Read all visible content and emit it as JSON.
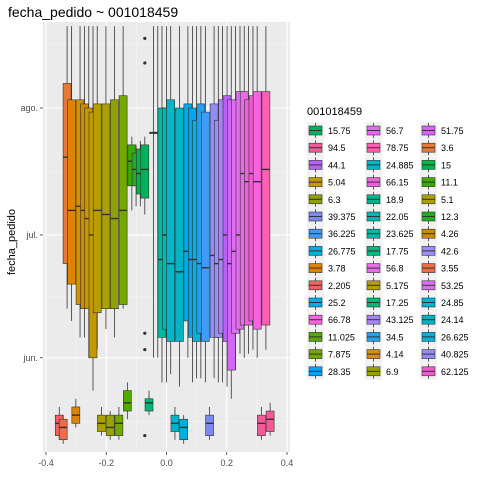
{
  "chart_data": {
    "type": "boxplot",
    "title": "fecha_pedido ~ 001018459",
    "xlabel": "",
    "ylabel": "fecha_pedido",
    "xlim": [
      -0.41,
      0.41
    ],
    "x_ticks": [
      -0.4,
      -0.2,
      0.0,
      0.2,
      0.4
    ],
    "x_tick_labels": [
      "-0.4",
      "-0.2",
      "0.0",
      "0.2",
      "0.4"
    ],
    "y_axis": "date",
    "ylim": [
      "2023-05-09",
      "2023-08-22"
    ],
    "y_ticks": [
      "2023-06-01",
      "2023-07-01",
      "2023-08-01"
    ],
    "y_tick_labels": [
      "jun.",
      "jul.",
      "ago."
    ],
    "grid": true,
    "legend": {
      "title": "001018459",
      "placement": "right",
      "columns": 3,
      "entries": [
        {
          "label": "15.75",
          "color": "#00B25D"
        },
        {
          "label": "94.5",
          "color": "#F45A98"
        },
        {
          "label": "44.1",
          "color": "#BA61F5"
        },
        {
          "label": "5.04",
          "color": "#C49A00"
        },
        {
          "label": "6.3",
          "color": "#8FA000"
        },
        {
          "label": "39.375",
          "color": "#7C8AF0"
        },
        {
          "label": "36.225",
          "color": "#409BF8"
        },
        {
          "label": "26.775",
          "color": "#00B0DB"
        },
        {
          "label": "3.78",
          "color": "#DF8400"
        },
        {
          "label": "2.205",
          "color": "#F2615F"
        },
        {
          "label": "25.2",
          "color": "#00ACE8"
        },
        {
          "label": "66.78",
          "color": "#F763E0"
        },
        {
          "label": "11.025",
          "color": "#52AA00"
        },
        {
          "label": "7.875",
          "color": "#73A800"
        },
        {
          "label": "28.35",
          "color": "#00A6F5"
        },
        {
          "label": "56.7",
          "color": "#E26BF0"
        },
        {
          "label": "78.75",
          "color": "#FF5EB5"
        },
        {
          "label": "24.885",
          "color": "#00B6C8"
        },
        {
          "label": "66.15",
          "color": "#ED61DA"
        },
        {
          "label": "18.9",
          "color": "#00B48E"
        },
        {
          "label": "22.05",
          "color": "#00B9B0"
        },
        {
          "label": "23.625",
          "color": "#00BAA6"
        },
        {
          "label": "17.75",
          "color": "#00B880"
        },
        {
          "label": "56.8",
          "color": "#E96BEA"
        },
        {
          "label": "5.175",
          "color": "#B79F00"
        },
        {
          "label": "17.25",
          "color": "#00B774"
        },
        {
          "label": "43.125",
          "color": "#A783F8"
        },
        {
          "label": "34.5",
          "color": "#22A1F1"
        },
        {
          "label": "4.14",
          "color": "#D39200"
        },
        {
          "label": "6.9",
          "color": "#9AA400"
        },
        {
          "label": "51.75",
          "color": "#D466F7"
        },
        {
          "label": "3.6",
          "color": "#E57A36"
        },
        {
          "label": "15",
          "color": "#00B646"
        },
        {
          "label": "11.1",
          "color": "#3CAB00"
        },
        {
          "label": "5.1",
          "color": "#ACA000"
        },
        {
          "label": "12.3",
          "color": "#21AD27"
        },
        {
          "label": "4.26",
          "color": "#CE8A00"
        },
        {
          "label": "42.6",
          "color": "#9B8EF8"
        },
        {
          "label": "3.55",
          "color": "#EE6C49"
        },
        {
          "label": "53.25",
          "color": "#DA6FF1"
        },
        {
          "label": "24.85",
          "color": "#00B4D0"
        },
        {
          "label": "24.14",
          "color": "#00B3C2"
        },
        {
          "label": "26.625",
          "color": "#0AAFDA"
        },
        {
          "label": "40.825",
          "color": "#918DF4"
        },
        {
          "label": "62.125",
          "color": "#F258CF"
        }
      ]
    },
    "boxes": [
      {
        "x": -0.356,
        "color": "#F2615F",
        "whisker_low": "2023-05-12",
        "q1": "2023-05-13",
        "median": "2023-05-16",
        "q3": "2023-05-18",
        "whisker_high": "2023-05-20"
      },
      {
        "x": -0.343,
        "color": "#EE6C49",
        "whisker_low": "2023-05-11",
        "q1": "2023-05-12",
        "median": "2023-05-15",
        "q3": "2023-05-17",
        "whisker_high": "2023-05-18"
      },
      {
        "x": -0.33,
        "color": "#E57A36",
        "whisker_low": "2023-06-13",
        "q1": "2023-06-24",
        "median": "2023-07-20",
        "q3": "2023-08-07",
        "whisker_high": "2023-08-21"
      },
      {
        "x": -0.315,
        "color": "#DF8400",
        "whisker_low": "2023-06-10",
        "q1": "2023-06-19",
        "median": "2023-07-07",
        "q3": "2023-08-03",
        "whisker_high": "2023-08-21"
      },
      {
        "x": -0.301,
        "color": "#DF8400",
        "whisker_low": "2023-05-15",
        "q1": "2023-05-16",
        "median": "2023-05-18",
        "q3": "2023-05-20",
        "whisker_high": "2023-05-22"
      },
      {
        "x": -0.287,
        "color": "#D39200",
        "whisker_low": "2023-06-06",
        "q1": "2023-06-14",
        "median": "2023-07-08",
        "q3": "2023-08-03",
        "whisker_high": "2023-08-21"
      },
      {
        "x": -0.272,
        "color": "#CE8A00",
        "whisker_low": "2023-06-06",
        "q1": "2023-06-13",
        "median": "2023-07-07",
        "q3": "2023-08-02",
        "whisker_high": "2023-08-21"
      },
      {
        "x": -0.258,
        "color": "#C49A00",
        "whisker_low": "2023-06-01",
        "q1": "2023-06-13",
        "median": "2023-07-05",
        "q3": "2023-08-01",
        "whisker_high": "2023-08-21"
      },
      {
        "x": -0.244,
        "color": "#C49A00",
        "whisker_low": "2023-05-24",
        "q1": "2023-06-01",
        "median": "2023-07-01",
        "q3": "2023-07-31",
        "whisker_high": "2023-08-21"
      },
      {
        "x": -0.23,
        "color": "#B79F00",
        "whisker_low": "2023-06-03",
        "q1": "2023-06-12",
        "median": "2023-07-07",
        "q3": "2023-08-02",
        "whisker_high": "2023-08-21"
      },
      {
        "x": -0.216,
        "color": "#ACA000",
        "whisker_low": "2023-05-13",
        "q1": "2023-05-14",
        "median": "2023-05-16",
        "q3": "2023-05-18",
        "whisker_high": "2023-05-20"
      },
      {
        "x": -0.201,
        "color": "#ACA000",
        "whisker_low": "2023-06-08",
        "q1": "2023-06-13",
        "median": "2023-07-06",
        "q3": "2023-08-02",
        "whisker_high": "2023-08-21"
      },
      {
        "x": -0.187,
        "color": "#9AA400",
        "whisker_low": "2023-05-12",
        "q1": "2023-05-13",
        "median": "2023-05-15",
        "q3": "2023-05-18",
        "whisker_high": "2023-05-19"
      },
      {
        "x": -0.173,
        "color": "#8FA000",
        "whisker_low": "2023-06-06",
        "q1": "2023-06-13",
        "median": "2023-07-05",
        "q3": "2023-08-03",
        "whisker_high": "2023-08-21"
      },
      {
        "x": -0.158,
        "color": "#73A800",
        "whisker_low": "2023-05-12",
        "q1": "2023-05-13",
        "median": "2023-05-16",
        "q3": "2023-05-18",
        "whisker_high": "2023-05-20"
      },
      {
        "x": -0.144,
        "color": "#73A800",
        "whisker_low": "2023-06-13",
        "q1": "2023-06-14",
        "median": "2023-07-07",
        "q3": "2023-08-04",
        "whisker_high": "2023-08-21"
      },
      {
        "x": -0.13,
        "color": "#52AA00",
        "whisker_low": "2023-05-17",
        "q1": "2023-05-19",
        "median": "2023-05-21",
        "q3": "2023-05-24",
        "whisker_high": "2023-05-26"
      },
      {
        "x": -0.115,
        "color": "#3CAB00",
        "whisker_low": "2023-07-07",
        "q1": "2023-07-13",
        "median": "2023-07-19",
        "q3": "2023-07-23",
        "whisker_high": "2023-07-25"
      },
      {
        "x": -0.101,
        "color": "#21AD27",
        "whisker_low": "2023-07-08",
        "q1": "2023-07-13",
        "median": "2023-07-17",
        "q3": "2023-07-21",
        "whisker_high": "2023-07-23"
      },
      {
        "x": -0.087,
        "color": "#00B646",
        "whisker_low": "2023-07-08",
        "q1": "2023-07-11",
        "median": "2023-07-16",
        "q3": "2023-07-22",
        "whisker_high": "2023-07-24"
      },
      {
        "x": -0.072,
        "color": "#00B25D",
        "whisker_low": "2023-07-06",
        "q1": "2023-07-10",
        "median": "2023-07-17",
        "q3": "2023-07-23",
        "whisker_high": "2023-07-25",
        "outliers": [
          "2023-08-18",
          "2023-08-12",
          "2023-06-07",
          "2023-06-03",
          "2023-05-13"
        ]
      },
      {
        "x": -0.058,
        "color": "#00B774",
        "whisker_low": "2023-05-18",
        "q1": "2023-05-19",
        "median": "2023-05-21",
        "q3": "2023-05-22",
        "whisker_high": "2023-05-24"
      },
      {
        "x": -0.043,
        "color": "#00B880",
        "whisker_low": "2023-06-01",
        "q1": "2023-07-26",
        "median": "2023-07-26",
        "q3": "2023-07-26",
        "whisker_high": "2023-08-21"
      },
      {
        "x": -0.029,
        "color": "#00B48E",
        "whisker_low": "2023-06-01",
        "q1": "2023-07-26",
        "median": "2023-07-26",
        "q3": "2023-07-26",
        "whisker_high": "2023-08-21"
      },
      {
        "x": -0.015,
        "color": "#00BAA6",
        "whisker_low": "2023-05-26",
        "q1": "2023-06-06",
        "median": "2023-06-25",
        "q3": "2023-08-01",
        "whisker_high": "2023-08-21"
      },
      {
        "x": 0.0,
        "color": "#00B9B0",
        "whisker_low": "2023-05-26",
        "q1": "2023-06-08",
        "median": "2023-07-01",
        "q3": "2023-08-01",
        "whisker_high": "2023-08-21"
      },
      {
        "x": 0.014,
        "color": "#00B6C8",
        "whisker_low": "2023-05-28",
        "q1": "2023-06-05",
        "median": "2023-06-24",
        "q3": "2023-08-03",
        "whisker_high": "2023-08-21"
      },
      {
        "x": 0.028,
        "color": "#00B4D0",
        "whisker_low": "2023-05-12",
        "q1": "2023-05-14",
        "median": "2023-05-16",
        "q3": "2023-05-18",
        "whisker_high": "2023-05-20"
      },
      {
        "x": 0.043,
        "color": "#00B3C2",
        "whisker_low": "2023-05-25",
        "q1": "2023-06-05",
        "median": "2023-06-22",
        "q3": "2023-08-01",
        "whisker_high": "2023-08-21"
      },
      {
        "x": 0.057,
        "color": "#00B0DB",
        "whisker_low": "2023-05-11",
        "q1": "2023-05-12",
        "median": "2023-05-15",
        "q3": "2023-05-17",
        "whisker_high": "2023-05-18"
      },
      {
        "x": 0.071,
        "color": "#00ACE8",
        "whisker_low": "2023-06-01",
        "q1": "2023-06-10",
        "median": "2023-06-27",
        "q3": "2023-08-02",
        "whisker_high": "2023-08-21"
      },
      {
        "x": 0.086,
        "color": "#00A6F5",
        "whisker_low": "2023-05-26",
        "q1": "2023-06-06",
        "median": "2023-06-25",
        "q3": "2023-08-01",
        "whisker_high": "2023-08-21"
      },
      {
        "x": 0.1,
        "color": "#0AAFDA",
        "whisker_low": "2023-05-27",
        "q1": "2023-06-05",
        "median": "2023-06-25",
        "q3": "2023-07-29",
        "whisker_high": "2023-08-21"
      },
      {
        "x": 0.114,
        "color": "#22A1F1",
        "whisker_low": "2023-05-27",
        "q1": "2023-06-07",
        "median": "2023-06-24",
        "q3": "2023-08-02",
        "whisker_high": "2023-08-21"
      },
      {
        "x": 0.129,
        "color": "#409BF8",
        "whisker_low": "2023-05-26",
        "q1": "2023-06-05",
        "median": "2023-06-23",
        "q3": "2023-07-31",
        "whisker_high": "2023-08-21"
      },
      {
        "x": 0.143,
        "color": "#7C8AF0",
        "whisker_low": "2023-05-12",
        "q1": "2023-05-13",
        "median": "2023-05-16",
        "q3": "2023-05-18",
        "whisker_high": "2023-05-20"
      },
      {
        "x": 0.158,
        "color": "#918DF4",
        "whisker_low": "2023-05-27",
        "q1": "2023-06-06",
        "median": "2023-06-26",
        "q3": "2023-08-02",
        "whisker_high": "2023-08-21"
      },
      {
        "x": 0.172,
        "color": "#9B8EF8",
        "whisker_low": "2023-05-26",
        "q1": "2023-06-06",
        "median": "2023-06-24",
        "q3": "2023-07-29",
        "whisker_high": "2023-08-21"
      },
      {
        "x": 0.186,
        "color": "#A783F8",
        "whisker_low": "2023-05-26",
        "q1": "2023-06-07",
        "median": "2023-06-25",
        "q3": "2023-08-03",
        "whisker_high": "2023-08-21"
      },
      {
        "x": 0.201,
        "color": "#BA61F5",
        "whisker_low": "2023-05-25",
        "q1": "2023-06-05",
        "median": "2023-07-01",
        "q3": "2023-08-04",
        "whisker_high": "2023-08-21"
      },
      {
        "x": 0.215,
        "color": "#D466F7",
        "whisker_low": "2023-05-22",
        "q1": "2023-05-29",
        "median": "2023-06-24",
        "q3": "2023-08-03",
        "whisker_high": "2023-08-21"
      },
      {
        "x": 0.229,
        "color": "#DA6FF1",
        "whisker_low": "2023-05-29",
        "q1": "2023-06-07",
        "median": "2023-06-27",
        "q3": "2023-08-03",
        "whisker_high": "2023-08-21"
      },
      {
        "x": 0.244,
        "color": "#E26BF0",
        "whisker_low": "2023-06-02",
        "q1": "2023-06-08",
        "median": "2023-07-01",
        "q3": "2023-08-05",
        "whisker_high": "2023-08-21"
      },
      {
        "x": 0.258,
        "color": "#E96BEA",
        "whisker_low": "2023-06-01",
        "q1": "2023-06-09",
        "median": "2023-07-16",
        "q3": "2023-08-05",
        "whisker_high": "2023-08-21"
      },
      {
        "x": 0.272,
        "color": "#ED61DA",
        "whisker_low": "2023-06-02",
        "q1": "2023-06-09",
        "median": "2023-07-14",
        "q3": "2023-08-03",
        "whisker_high": "2023-08-21"
      },
      {
        "x": 0.287,
        "color": "#F258CF",
        "whisker_low": "2023-06-03",
        "q1": "2023-06-10",
        "median": "2023-07-16",
        "q3": "2023-08-04",
        "whisker_high": "2023-08-21"
      },
      {
        "x": 0.301,
        "color": "#F763E0",
        "whisker_low": "2023-06-01",
        "q1": "2023-06-08",
        "median": "2023-07-14",
        "q3": "2023-08-05",
        "whisker_high": "2023-08-21"
      },
      {
        "x": 0.315,
        "color": "#F45A98",
        "whisker_low": "2023-05-12",
        "q1": "2023-05-13",
        "median": "2023-05-16",
        "q3": "2023-05-18",
        "whisker_high": "2023-05-20"
      },
      {
        "x": 0.33,
        "color": "#FF5EB5",
        "whisker_low": "2023-06-03",
        "q1": "2023-06-09",
        "median": "2023-07-17",
        "q3": "2023-08-05",
        "whisker_high": "2023-08-21"
      },
      {
        "x": 0.344,
        "color": "#F45A98",
        "whisker_low": "2023-05-13",
        "q1": "2023-05-14",
        "median": "2023-05-17",
        "q3": "2023-05-19",
        "whisker_high": "2023-05-21"
      }
    ]
  }
}
